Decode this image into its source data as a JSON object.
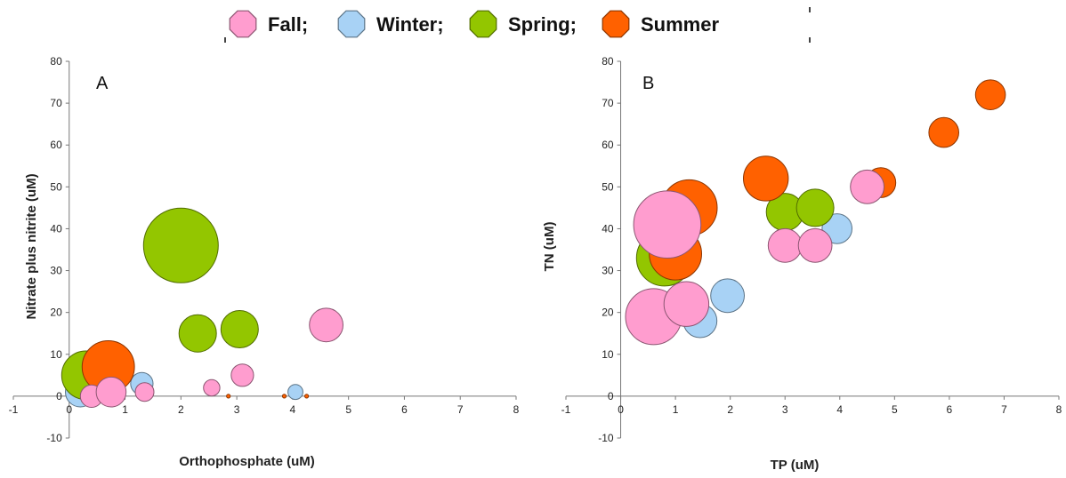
{
  "legend": {
    "entries": [
      {
        "label": "Fall;",
        "series": "Fall"
      },
      {
        "label": "Winter;",
        "series": "Winter"
      },
      {
        "label": "Spring;",
        "series": "Spring"
      },
      {
        "label": "Summer",
        "series": "Summer"
      }
    ],
    "placement": "top-center"
  },
  "colors": {
    "Fall": "#ff9dcf",
    "Winter": "#a8d2f5",
    "Spring": "#93c600",
    "Summer": "#ff6100"
  },
  "chart_data": [
    {
      "type": "scatter",
      "panel": "A",
      "title": "",
      "xlabel": "Orthophosphate (uM)",
      "ylabel": "Nitrate plus nitrite (uM)",
      "xlim": [
        -1,
        8
      ],
      "ylim": [
        -10,
        80
      ],
      "xticks": [
        "-1",
        "0",
        "1",
        "2",
        "3",
        "4",
        "5",
        "6",
        "7",
        "8"
      ],
      "yticks": [
        "-10",
        "0",
        "10",
        "20",
        "30",
        "40",
        "50",
        "60",
        "70",
        "80"
      ],
      "grid": false,
      "series": [
        {
          "name": "Winter",
          "points": [
            {
              "x": 0.2,
              "y": 1,
              "size": 0.4
            },
            {
              "x": 1.3,
              "y": 3,
              "size": 0.3
            },
            {
              "x": 4.05,
              "y": 1,
              "size": 0.2
            }
          ]
        },
        {
          "name": "Spring",
          "points": [
            {
              "x": 2.0,
              "y": 36,
              "size": 1.0
            },
            {
              "x": 2.3,
              "y": 15,
              "size": 0.5
            },
            {
              "x": 3.05,
              "y": 16,
              "size": 0.5
            },
            {
              "x": 0.3,
              "y": 5,
              "size": 0.65
            }
          ]
        },
        {
          "name": "Summer",
          "points": [
            {
              "x": 0.7,
              "y": 7,
              "size": 0.7
            },
            {
              "x": 2.85,
              "y": 0,
              "size": 0.05
            },
            {
              "x": 3.85,
              "y": 0,
              "size": 0.05
            },
            {
              "x": 4.25,
              "y": 0,
              "size": 0.05
            }
          ]
        },
        {
          "name": "Fall",
          "points": [
            {
              "x": 0.4,
              "y": 0,
              "size": 0.3
            },
            {
              "x": 0.75,
              "y": 1,
              "size": 0.4
            },
            {
              "x": 1.35,
              "y": 1,
              "size": 0.25
            },
            {
              "x": 2.55,
              "y": 2,
              "size": 0.22
            },
            {
              "x": 3.1,
              "y": 5,
              "size": 0.3
            },
            {
              "x": 4.6,
              "y": 17,
              "size": 0.45
            }
          ]
        }
      ]
    },
    {
      "type": "scatter",
      "panel": "B",
      "title": "",
      "xlabel": "TP (uM)",
      "ylabel": "TN (uM)",
      "xlim": [
        -1,
        8
      ],
      "ylim": [
        -10,
        80
      ],
      "xticks": [
        "-1",
        "0",
        "1",
        "2",
        "3",
        "4",
        "5",
        "6",
        "7",
        "8"
      ],
      "yticks": [
        "-10",
        "0",
        "10",
        "20",
        "30",
        "40",
        "50",
        "60",
        "70",
        "80"
      ],
      "grid": false,
      "series": [
        {
          "name": "Winter",
          "points": [
            {
              "x": 3.95,
              "y": 40,
              "size": 0.4
            },
            {
              "x": 1.95,
              "y": 24,
              "size": 0.45
            },
            {
              "x": 1.45,
              "y": 18,
              "size": 0.45
            }
          ]
        },
        {
          "name": "Spring",
          "points": [
            {
              "x": 0.8,
              "y": 33,
              "size": 0.75
            },
            {
              "x": 3.0,
              "y": 44,
              "size": 0.5
            },
            {
              "x": 3.55,
              "y": 45,
              "size": 0.5
            }
          ]
        },
        {
          "name": "Summer",
          "points": [
            {
              "x": 1.25,
              "y": 45,
              "size": 0.75
            },
            {
              "x": 1.0,
              "y": 34,
              "size": 0.7
            },
            {
              "x": 2.65,
              "y": 52,
              "size": 0.6
            },
            {
              "x": 4.75,
              "y": 51,
              "size": 0.4
            },
            {
              "x": 5.9,
              "y": 63,
              "size": 0.4
            },
            {
              "x": 6.75,
              "y": 72,
              "size": 0.4
            }
          ]
        },
        {
          "name": "Fall",
          "points": [
            {
              "x": 0.6,
              "y": 19,
              "size": 0.75
            },
            {
              "x": 0.85,
              "y": 41,
              "size": 0.9
            },
            {
              "x": 1.2,
              "y": 22,
              "size": 0.6
            },
            {
              "x": 3.0,
              "y": 36,
              "size": 0.45
            },
            {
              "x": 3.55,
              "y": 36,
              "size": 0.45
            },
            {
              "x": 4.5,
              "y": 50,
              "size": 0.45
            }
          ]
        }
      ]
    }
  ]
}
